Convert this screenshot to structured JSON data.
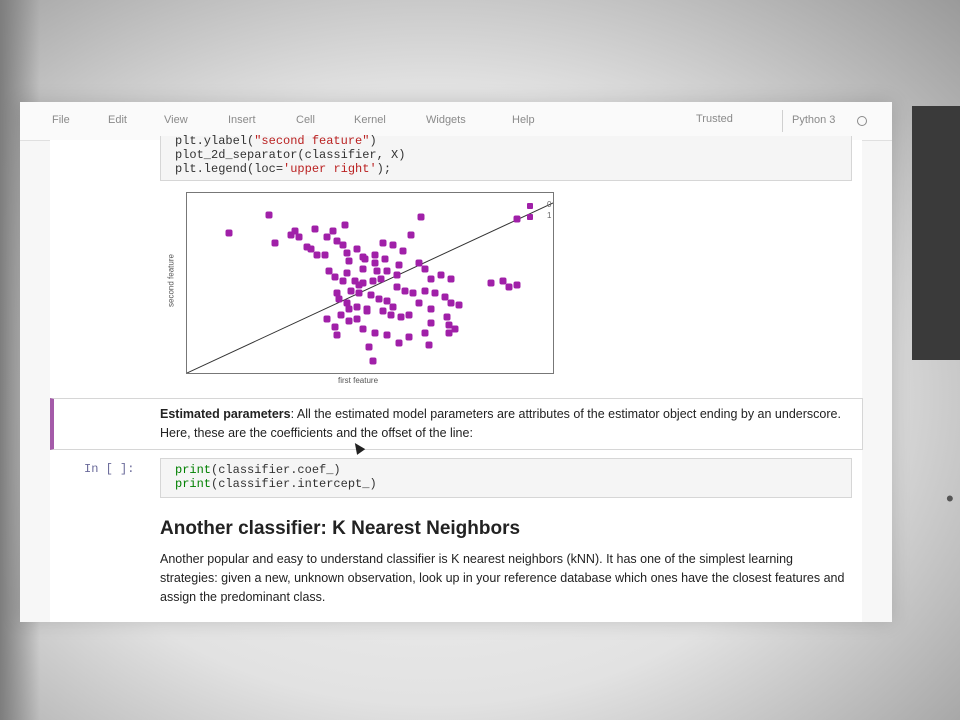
{
  "menu": {
    "items": [
      "File",
      "Edit",
      "View",
      "Insert",
      "Cell",
      "Kernel",
      "Widgets",
      "Help"
    ],
    "trusted": "Trusted",
    "kernel": "Python 3"
  },
  "code_top": {
    "line1_a": "plt.ylabel(",
    "line1_str": "\"second feature\"",
    "line1_b": ")",
    "line2": "plot_2d_separator(classifier, X)",
    "line3_a": "plt.legend(loc=",
    "line3_str": "'upper right'",
    "line3_b": ");"
  },
  "plot": {
    "xlabel": "first feature",
    "ylabel": "second feature",
    "legend": [
      "0",
      "1"
    ],
    "point_color": "#a020a8"
  },
  "chart_data": {
    "type": "scatter",
    "xlabel": "first feature",
    "ylabel": "second feature",
    "legend": [
      "0",
      "1"
    ],
    "legend_position": "top-right",
    "xlim": [
      0,
      366
    ],
    "ylim": [
      0,
      180
    ],
    "series": [
      {
        "name": "0",
        "points": [
          [
            82,
            158
          ],
          [
            42,
            140
          ],
          [
            104,
            138
          ],
          [
            108,
            142
          ],
          [
            112,
            136
          ],
          [
            88,
            130
          ],
          [
            120,
            126
          ],
          [
            124,
            124
          ],
          [
            140,
            136
          ],
          [
            146,
            142
          ],
          [
            150,
            132
          ],
          [
            156,
            128
          ],
          [
            130,
            118
          ],
          [
            138,
            118
          ],
          [
            160,
            120
          ],
          [
            162,
            112
          ],
          [
            170,
            124
          ],
          [
            178,
            114
          ],
          [
            188,
            110
          ],
          [
            196,
            130
          ],
          [
            206,
            128
          ],
          [
            216,
            122
          ],
          [
            224,
            138
          ],
          [
            234,
            156
          ],
          [
            330,
            154
          ],
          [
            128,
            144
          ],
          [
            158,
            148
          ],
          [
            142,
            102
          ],
          [
            148,
            96
          ],
          [
            190,
            102
          ],
          [
            200,
            102
          ],
          [
            210,
            98
          ],
          [
            172,
            88
          ],
          [
            176,
            104
          ]
        ]
      },
      {
        "name": "1",
        "points": [
          [
            160,
            100
          ],
          [
            156,
            92
          ],
          [
            168,
            92
          ],
          [
            176,
            90
          ],
          [
            186,
            92
          ],
          [
            194,
            94
          ],
          [
            164,
            82
          ],
          [
            172,
            80
          ],
          [
            184,
            78
          ],
          [
            192,
            74
          ],
          [
            200,
            72
          ],
          [
            210,
            86
          ],
          [
            218,
            82
          ],
          [
            226,
            80
          ],
          [
            238,
            82
          ],
          [
            248,
            80
          ],
          [
            258,
            76
          ],
          [
            264,
            70
          ],
          [
            272,
            68
          ],
          [
            150,
            80
          ],
          [
            152,
            74
          ],
          [
            160,
            70
          ],
          [
            170,
            66
          ],
          [
            180,
            64
          ],
          [
            196,
            62
          ],
          [
            204,
            58
          ],
          [
            214,
            56
          ],
          [
            222,
            58
          ],
          [
            244,
            64
          ],
          [
            260,
            56
          ],
          [
            262,
            48
          ],
          [
            268,
            44
          ],
          [
            244,
            50
          ],
          [
            232,
            70
          ],
          [
            244,
            94
          ],
          [
            254,
            98
          ],
          [
            264,
            94
          ],
          [
            238,
            104
          ],
          [
            232,
            110
          ],
          [
            212,
            108
          ],
          [
            198,
            114
          ],
          [
            188,
            118
          ],
          [
            176,
            116
          ],
          [
            162,
            64
          ],
          [
            154,
            58
          ],
          [
            162,
            52
          ],
          [
            148,
            46
          ],
          [
            176,
            44
          ],
          [
            188,
            40
          ],
          [
            200,
            38
          ],
          [
            212,
            30
          ],
          [
            222,
            36
          ],
          [
            242,
            28
          ],
          [
            262,
            40
          ],
          [
            180,
            62
          ],
          [
            206,
            66
          ],
          [
            170,
            54
          ],
          [
            238,
            40
          ],
          [
            304,
            90
          ],
          [
            316,
            92
          ],
          [
            322,
            86
          ],
          [
            330,
            88
          ],
          [
            150,
            38
          ],
          [
            182,
            26
          ],
          [
            140,
            54
          ],
          [
            186,
            12
          ]
        ]
      }
    ],
    "separator": {
      "x1": 0,
      "y1": 0,
      "x2": 366,
      "y2": 170
    }
  },
  "markdown": {
    "bold": "Estimated parameters",
    "text": ": All the estimated model parameters are attributes of the estimator object ending by an underscore. Here, these are the coefficients and the offset of the line:"
  },
  "code_cell_2": {
    "prompt": "In [ ]:",
    "line1_kw": "print",
    "line1_rest": "(classifier.coef_)",
    "line2_kw": "print",
    "line2_rest": "(classifier.intercept_)"
  },
  "section": {
    "heading": "Another classifier: K Nearest Neighbors",
    "paragraph": "Another popular and easy to understand classifier is K nearest neighbors (kNN). It has one of the simplest learning strategies: given a new, unknown observation, look up in your reference database which ones have the closest features and assign the predominant class."
  }
}
